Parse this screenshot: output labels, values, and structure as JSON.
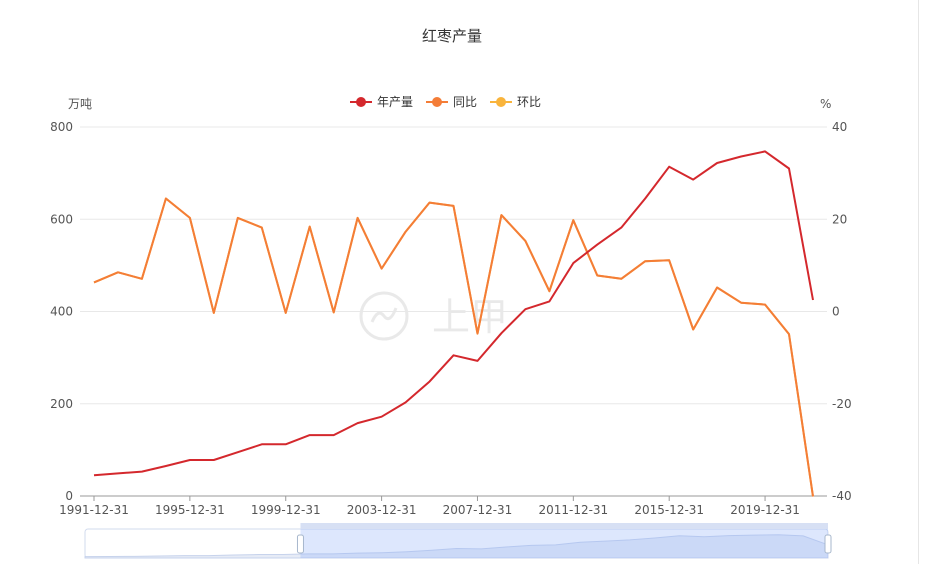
{
  "chart_data": {
    "type": "line",
    "title": "红枣产量",
    "y_left_label": "万吨",
    "y_right_label": "%",
    "y_left_range": [
      0,
      800
    ],
    "y_left_ticks": [
      "0",
      "200",
      "400",
      "600",
      "800"
    ],
    "y_right_range": [
      -40,
      40
    ],
    "y_right_ticks": [
      "-40",
      "-20",
      "0",
      "20",
      "40"
    ],
    "x_tick_labels": [
      "1991-12-31",
      "1995-12-31",
      "1999-12-31",
      "2003-12-31",
      "2007-12-31",
      "2011-12-31",
      "2015-12-31",
      "2019-12-31"
    ],
    "x": [
      "1991-12-31",
      "1992-12-31",
      "1993-12-31",
      "1994-12-31",
      "1995-12-31",
      "1996-12-31",
      "1997-12-31",
      "1998-12-31",
      "1999-12-31",
      "2000-12-31",
      "2001-12-31",
      "2002-12-31",
      "2003-12-31",
      "2004-12-31",
      "2005-12-31",
      "2006-12-31",
      "2007-12-31",
      "2008-12-31",
      "2009-12-31",
      "2010-12-31",
      "2011-12-31",
      "2012-12-31",
      "2013-12-31",
      "2014-12-31",
      "2015-12-31",
      "2016-12-31",
      "2017-12-31",
      "2018-12-31",
      "2019-12-31",
      "2020-12-31",
      "2021-12-31"
    ],
    "legend_position": "top-center",
    "grid": true,
    "series": [
      {
        "name": "年产量",
        "axis": "left",
        "color": "#d4282d",
        "values": [
          45,
          49,
          53,
          65,
          78,
          78,
          95,
          112,
          112,
          132,
          132,
          158,
          172,
          203,
          248,
          305,
          293,
          353,
          405,
          422,
          505,
          545,
          582,
          645,
          714,
          686,
          722,
          736,
          747,
          710,
          425
        ]
      },
      {
        "name": "同比",
        "axis": "right",
        "color": "#f47d37",
        "values": [
          6.3,
          8.5,
          7.1,
          24.5,
          20.3,
          -0.3,
          20.3,
          18.2,
          -0.3,
          18.4,
          -0.2,
          20.3,
          9.3,
          17.3,
          23.6,
          22.9,
          -4.8,
          20.9,
          15.3,
          4.4,
          19.8,
          7.8,
          7.1,
          10.9,
          11.1,
          -3.9,
          5.2,
          1.9,
          1.5,
          -4.9,
          -40.1
        ]
      },
      {
        "name": "环比",
        "axis": "right",
        "color": "#f9b43c",
        "values": [
          6.3,
          8.5,
          7.1,
          24.5,
          20.3,
          -0.3,
          20.3,
          18.2,
          -0.3,
          18.4,
          -0.2,
          20.3,
          9.3,
          17.3,
          23.6,
          22.9,
          -4.8,
          20.9,
          15.3,
          4.4,
          19.8,
          7.8,
          7.1,
          10.9,
          11.1,
          -3.9,
          5.2,
          1.9,
          1.5,
          -4.9,
          -40.1
        ]
      }
    ],
    "zoom_range": [
      0.29,
      1.0
    ]
  },
  "watermark": "上甲"
}
